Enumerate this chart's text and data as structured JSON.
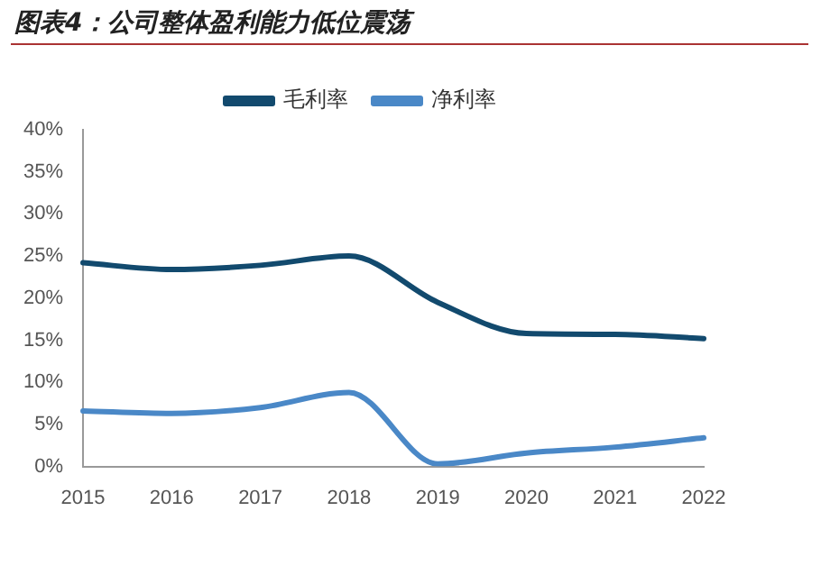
{
  "chart_data": {
    "type": "line",
    "title": "图表4：公司整体盈利能力低位震荡",
    "categories": [
      "2015",
      "2016",
      "2017",
      "2018",
      "2019",
      "2020",
      "2021",
      "2022"
    ],
    "series": [
      {
        "name": "毛利率",
        "color": "#124a6e",
        "values": [
          24.2,
          23.4,
          23.9,
          25.0,
          19.5,
          15.8,
          15.7,
          15.2
        ]
      },
      {
        "name": "净利率",
        "color": "#4a88c7",
        "values": [
          6.6,
          6.3,
          7.0,
          8.8,
          0.3,
          1.6,
          2.3,
          3.4
        ]
      }
    ],
    "ylim": [
      0,
      40
    ],
    "yticks": [
      {
        "value": 0,
        "label": "0%"
      },
      {
        "value": 5,
        "label": "5%"
      },
      {
        "value": 10,
        "label": "10%"
      },
      {
        "value": 15,
        "label": "15%"
      },
      {
        "value": 20,
        "label": "20%"
      },
      {
        "value": 25,
        "label": "25%"
      },
      {
        "value": 30,
        "label": "30%"
      },
      {
        "value": 35,
        "label": "35%"
      },
      {
        "value": 40,
        "label": "40%"
      }
    ],
    "legend": "top",
    "grid": false,
    "marker": "none",
    "line_style": "solid"
  }
}
